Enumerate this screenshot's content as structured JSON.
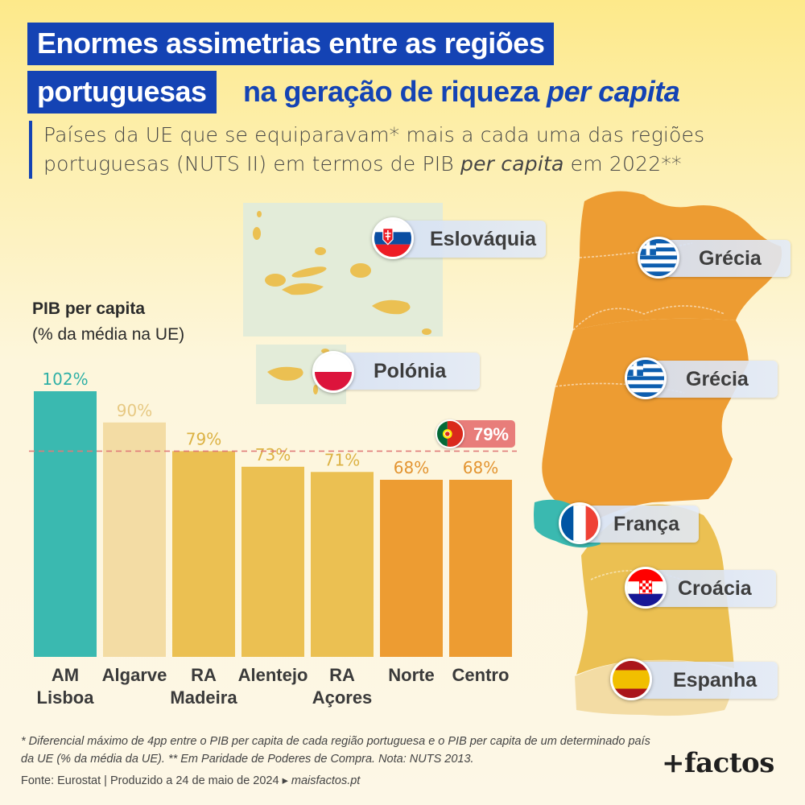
{
  "title": {
    "line1": "Enormes assimetrias entre as regiões",
    "line2a": "portuguesas",
    "line2b": "na geração de riqueza",
    "line2c": "per capita"
  },
  "subtitle": {
    "p1": "Países da UE que se equiparavam* mais a cada uma das regiões portuguesas (NUTS II) em termos de PIB ",
    "em": "per capita",
    "p2": " em 2022**"
  },
  "chart_data": {
    "type": "bar",
    "ylabel": "PIB per capita",
    "ylabel_unit": "(% da média na UE)",
    "categories": [
      [
        "AM",
        "Lisboa"
      ],
      [
        "Algarve"
      ],
      [
        "RA",
        "Madeira"
      ],
      [
        "Alentejo"
      ],
      [
        "RA",
        "Açores"
      ],
      [
        "Norte"
      ],
      [
        "Centro"
      ]
    ],
    "values": [
      102,
      90,
      79,
      73,
      71,
      68,
      68
    ],
    "value_labels": [
      "102%",
      "90%",
      "79%",
      "73%",
      "71%",
      "68%",
      "68%"
    ],
    "colors": [
      "#3ab9b0",
      "#f3dca4",
      "#ebc052",
      "#ebc052",
      "#ebc052",
      "#ed9c32",
      "#ed9c32"
    ],
    "label_colors": [
      "#2fb0a6",
      "#e7c983",
      "#dcb244",
      "#dcb244",
      "#dcb244",
      "#e39431",
      "#e39431"
    ],
    "reference": {
      "label": "79%",
      "value": 79,
      "name": "Portugal",
      "color": "#e07b7a"
    },
    "ylim": [
      0,
      102
    ]
  },
  "map": {
    "regions": [
      {
        "name": "Norte",
        "country": "Grécia",
        "color": "#ed9c32",
        "flag": "greece"
      },
      {
        "name": "Centro",
        "country": "Grécia",
        "color": "#ed9c32",
        "flag": "greece"
      },
      {
        "name": "AM Lisboa",
        "country": "França",
        "color": "#3ab9b0",
        "flag": "france"
      },
      {
        "name": "Alentejo",
        "country": "Croácia",
        "color": "#ebc052",
        "flag": "croatia"
      },
      {
        "name": "Algarve",
        "country": "Espanha",
        "color": "#f3dca4",
        "flag": "spain"
      }
    ],
    "islands": [
      {
        "name": "RA Açores",
        "country": "Eslováquia",
        "flag": "slovakia"
      },
      {
        "name": "RA Madeira",
        "country": "Polónia",
        "flag": "poland"
      }
    ]
  },
  "footnote": "* Diferencial máximo de 4pp entre o PIB per capita de cada região portuguesa e o PIB per capita de um determinado país da UE (% da média da UE). ** Em Paridade de Poderes de Compra. Nota: NUTS 2013.",
  "source": {
    "text": "Fonte: Eurostat | Produzido a 24 de maio de 2024 ▸ ",
    "link": "maisfactos.pt"
  },
  "brand": "+factos"
}
